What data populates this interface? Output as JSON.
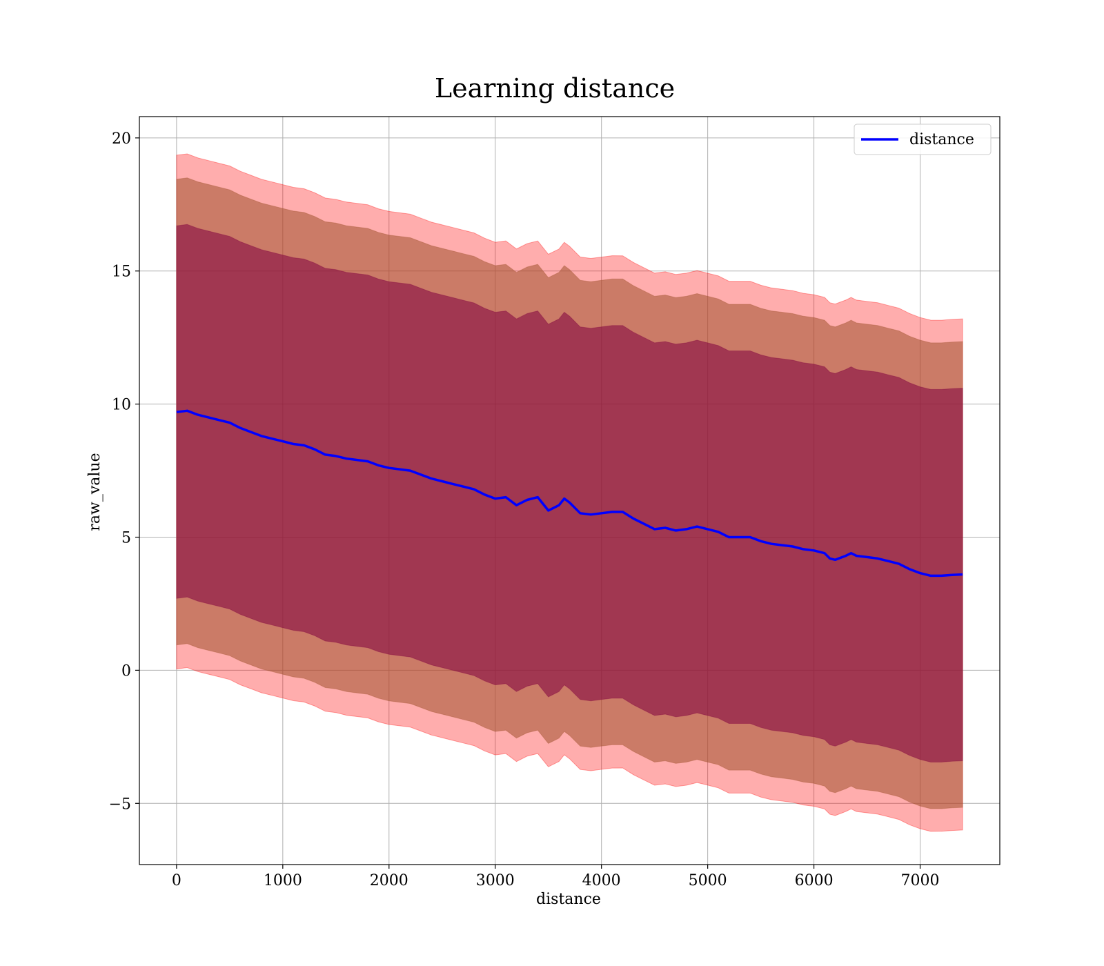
{
  "chart_data": {
    "type": "line",
    "title": "Learning distance",
    "xlabel": "distance",
    "ylabel": "raw_value",
    "xlim": [
      -350,
      7750
    ],
    "ylim": [
      -7.3,
      20.8
    ],
    "xticks": [
      0,
      1000,
      2000,
      3000,
      4000,
      5000,
      6000,
      7000
    ],
    "yticks": [
      -5,
      0,
      5,
      10,
      15,
      20
    ],
    "ytick_labels": [
      "−5",
      "0",
      "5",
      "10",
      "15",
      "20"
    ],
    "grid": true,
    "legend": {
      "position": "upper right",
      "entries": [
        "distance"
      ]
    },
    "colors": {
      "line": "#0000ff",
      "band_outer": "#ff0000",
      "band_middle": "#a0522d",
      "band_inner": "#800040"
    },
    "series": [
      {
        "name": "distance",
        "x": [
          0,
          100,
          200,
          300,
          400,
          500,
          600,
          700,
          800,
          900,
          1000,
          1100,
          1200,
          1300,
          1400,
          1500,
          1600,
          1700,
          1800,
          1900,
          2000,
          2100,
          2200,
          2300,
          2400,
          2500,
          2600,
          2700,
          2800,
          2900,
          3000,
          3100,
          3200,
          3300,
          3400,
          3500,
          3600,
          3650,
          3700,
          3800,
          3900,
          4000,
          4100,
          4200,
          4300,
          4400,
          4500,
          4600,
          4700,
          4800,
          4900,
          5000,
          5100,
          5200,
          5300,
          5400,
          5500,
          5600,
          5700,
          5800,
          5900,
          6000,
          6100,
          6150,
          6200,
          6300,
          6350,
          6400,
          6500,
          6600,
          6700,
          6800,
          6900,
          7000,
          7100,
          7200,
          7300,
          7400
        ],
        "y": [
          9.7,
          9.75,
          9.6,
          9.5,
          9.4,
          9.3,
          9.1,
          8.95,
          8.8,
          8.7,
          8.6,
          8.5,
          8.45,
          8.3,
          8.1,
          8.05,
          7.95,
          7.9,
          7.85,
          7.7,
          7.6,
          7.55,
          7.5,
          7.35,
          7.2,
          7.1,
          7.0,
          6.9,
          6.8,
          6.6,
          6.45,
          6.5,
          6.2,
          6.4,
          6.5,
          6.0,
          6.2,
          6.45,
          6.3,
          5.9,
          5.85,
          5.9,
          5.95,
          5.95,
          5.7,
          5.5,
          5.3,
          5.35,
          5.25,
          5.3,
          5.4,
          5.3,
          5.2,
          5.0,
          5.0,
          5.0,
          4.85,
          4.75,
          4.7,
          4.65,
          4.55,
          4.5,
          4.4,
          4.2,
          4.15,
          4.3,
          4.4,
          4.3,
          4.25,
          4.2,
          4.1,
          4.0,
          3.8,
          3.65,
          3.55,
          3.55,
          3.58,
          3.6
        ]
      }
    ],
    "bands": [
      {
        "label": "outer",
        "half_width_start": 9.65,
        "half_width_end": 9.6
      },
      {
        "label": "middle",
        "half_width_start": 8.75,
        "half_width_end": 8.75
      },
      {
        "label": "inner",
        "half_width_start": 7.0,
        "half_width_end": 7.0
      }
    ]
  }
}
